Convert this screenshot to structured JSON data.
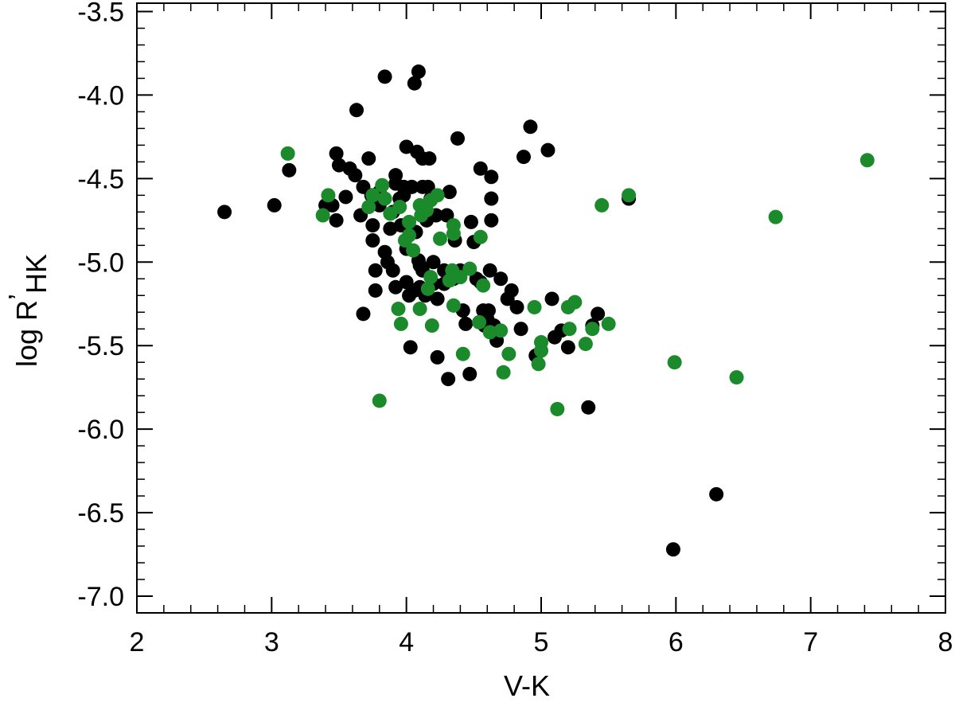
{
  "chart_data": {
    "type": "scatter",
    "title": "",
    "xlabel": "V-K",
    "ylabel_main": "log R",
    "ylabel_prime": "’",
    "ylabel_sub": "HK",
    "xlim": [
      2,
      8
    ],
    "ylim": [
      -7.1,
      -3.45
    ],
    "x_ticks": [
      2,
      3,
      4,
      5,
      6,
      7,
      8
    ],
    "x_tick_labels": [
      "2",
      "3",
      "4",
      "5",
      "6",
      "7",
      "8"
    ],
    "y_ticks": [
      -3.5,
      -4.0,
      -4.5,
      -5.0,
      -5.5,
      -6.0,
      -6.5,
      -7.0
    ],
    "y_tick_labels": [
      "-3.5",
      "-4.0",
      "-4.5",
      "-5.0",
      "-5.5",
      "-6.0",
      "-6.5",
      "-7.0"
    ],
    "grid": false,
    "series": [
      {
        "color": "#000000",
        "points": [
          [
            2.65,
            -4.7
          ],
          [
            3.02,
            -4.66
          ],
          [
            3.13,
            -4.45
          ],
          [
            3.4,
            -4.66
          ],
          [
            3.45,
            -4.66
          ],
          [
            3.48,
            -4.75
          ],
          [
            3.48,
            -4.35
          ],
          [
            3.5,
            -4.42
          ],
          [
            3.55,
            -4.61
          ],
          [
            3.58,
            -4.44
          ],
          [
            3.62,
            -4.48
          ],
          [
            3.63,
            -4.09
          ],
          [
            3.66,
            -4.72
          ],
          [
            3.68,
            -4.55
          ],
          [
            3.72,
            -4.38
          ],
          [
            3.68,
            -5.31
          ],
          [
            3.74,
            -4.6
          ],
          [
            3.75,
            -4.78
          ],
          [
            3.75,
            -4.87
          ],
          [
            3.77,
            -5.05
          ],
          [
            3.77,
            -5.17
          ],
          [
            3.8,
            -4.58
          ],
          [
            3.8,
            -4.66
          ],
          [
            3.84,
            -3.89
          ],
          [
            3.84,
            -4.94
          ],
          [
            3.86,
            -5.0
          ],
          [
            3.88,
            -4.8
          ],
          [
            3.9,
            -4.7
          ],
          [
            3.9,
            -5.05
          ],
          [
            3.92,
            -4.48
          ],
          [
            3.92,
            -4.53
          ],
          [
            3.92,
            -5.15
          ],
          [
            3.95,
            -4.62
          ],
          [
            3.96,
            -4.78
          ],
          [
            3.98,
            -4.55
          ],
          [
            3.98,
            -4.6
          ],
          [
            4.0,
            -4.31
          ],
          [
            4.0,
            -4.92
          ],
          [
            4.0,
            -5.12
          ],
          [
            4.02,
            -5.2
          ],
          [
            4.03,
            -5.51
          ],
          [
            4.04,
            -4.55
          ],
          [
            4.06,
            -3.93
          ],
          [
            4.06,
            -5.17
          ],
          [
            4.07,
            -4.82
          ],
          [
            4.08,
            -4.34
          ],
          [
            4.09,
            -3.86
          ],
          [
            4.09,
            -4.99
          ],
          [
            4.1,
            -5.02
          ],
          [
            4.1,
            -5.15
          ],
          [
            4.12,
            -4.55
          ],
          [
            4.12,
            -4.38
          ],
          [
            4.12,
            -5.05
          ],
          [
            4.14,
            -5.2
          ],
          [
            4.15,
            -4.75
          ],
          [
            4.16,
            -4.55
          ],
          [
            4.17,
            -4.38
          ],
          [
            4.18,
            -4.62
          ],
          [
            4.2,
            -5.0
          ],
          [
            4.2,
            -5.13
          ],
          [
            4.22,
            -4.72
          ],
          [
            4.23,
            -5.22
          ],
          [
            4.23,
            -5.57
          ],
          [
            4.28,
            -5.05
          ],
          [
            4.28,
            -5.13
          ],
          [
            4.3,
            -4.72
          ],
          [
            4.31,
            -5.7
          ],
          [
            4.32,
            -4.58
          ],
          [
            4.35,
            -5.1
          ],
          [
            4.36,
            -4.87
          ],
          [
            4.38,
            -4.26
          ],
          [
            4.4,
            -5.05
          ],
          [
            4.42,
            -5.29
          ],
          [
            4.44,
            -5.37
          ],
          [
            4.47,
            -5.67
          ],
          [
            4.48,
            -4.76
          ],
          [
            4.5,
            -4.88
          ],
          [
            4.52,
            -5.1
          ],
          [
            4.55,
            -4.44
          ],
          [
            4.55,
            -5.12
          ],
          [
            4.57,
            -5.29
          ],
          [
            4.58,
            -5.38
          ],
          [
            4.6,
            -5.34
          ],
          [
            4.61,
            -5.29
          ],
          [
            4.62,
            -5.05
          ],
          [
            4.63,
            -4.75
          ],
          [
            4.63,
            -4.62
          ],
          [
            4.63,
            -4.49
          ],
          [
            4.65,
            -5.38
          ],
          [
            4.67,
            -5.47
          ],
          [
            4.7,
            -5.1
          ],
          [
            4.75,
            -5.22
          ],
          [
            4.78,
            -5.17
          ],
          [
            4.82,
            -5.27
          ],
          [
            4.85,
            -5.4
          ],
          [
            4.87,
            -4.37
          ],
          [
            4.92,
            -4.19
          ],
          [
            4.96,
            -5.56
          ],
          [
            5.05,
            -4.33
          ],
          [
            5.08,
            -5.22
          ],
          [
            5.1,
            -5.45
          ],
          [
            5.15,
            -5.41
          ],
          [
            5.2,
            -5.51
          ],
          [
            5.35,
            -5.87
          ],
          [
            5.38,
            -5.38
          ],
          [
            5.42,
            -5.31
          ],
          [
            5.65,
            -4.62
          ],
          [
            5.98,
            -6.72
          ],
          [
            6.3,
            -6.39
          ]
        ]
      },
      {
        "color": "#1a8a2a",
        "points": [
          [
            3.12,
            -4.35
          ],
          [
            3.38,
            -4.72
          ],
          [
            3.42,
            -4.6
          ],
          [
            3.72,
            -4.67
          ],
          [
            3.75,
            -4.6
          ],
          [
            3.8,
            -5.83
          ],
          [
            3.82,
            -4.54
          ],
          [
            3.84,
            -4.62
          ],
          [
            3.88,
            -4.71
          ],
          [
            3.94,
            -5.28
          ],
          [
            3.95,
            -4.67
          ],
          [
            3.96,
            -5.37
          ],
          [
            3.99,
            -4.87
          ],
          [
            4.02,
            -4.76
          ],
          [
            4.02,
            -4.84
          ],
          [
            4.05,
            -4.93
          ],
          [
            4.1,
            -5.28
          ],
          [
            4.1,
            -4.66
          ],
          [
            4.11,
            -4.72
          ],
          [
            4.15,
            -4.69
          ],
          [
            4.16,
            -5.16
          ],
          [
            4.18,
            -5.09
          ],
          [
            4.18,
            -4.63
          ],
          [
            4.19,
            -5.38
          ],
          [
            4.23,
            -4.6
          ],
          [
            4.25,
            -4.86
          ],
          [
            4.32,
            -5.11
          ],
          [
            4.34,
            -5.05
          ],
          [
            4.35,
            -4.78
          ],
          [
            4.35,
            -4.83
          ],
          [
            4.35,
            -5.26
          ],
          [
            4.4,
            -5.09
          ],
          [
            4.42,
            -5.55
          ],
          [
            4.47,
            -5.04
          ],
          [
            4.54,
            -5.36
          ],
          [
            4.55,
            -4.85
          ],
          [
            4.57,
            -5.14
          ],
          [
            4.62,
            -5.42
          ],
          [
            4.7,
            -5.41
          ],
          [
            4.72,
            -5.66
          ],
          [
            4.76,
            -5.55
          ],
          [
            4.95,
            -5.27
          ],
          [
            4.98,
            -5.61
          ],
          [
            5.0,
            -5.48
          ],
          [
            5.0,
            -5.53
          ],
          [
            5.12,
            -5.88
          ],
          [
            5.2,
            -5.27
          ],
          [
            5.21,
            -5.4
          ],
          [
            5.25,
            -5.24
          ],
          [
            5.33,
            -5.49
          ],
          [
            5.38,
            -5.4
          ],
          [
            5.45,
            -4.66
          ],
          [
            5.5,
            -5.37
          ],
          [
            5.65,
            -4.6
          ],
          [
            5.99,
            -5.6
          ],
          [
            6.45,
            -5.69
          ],
          [
            6.74,
            -4.73
          ],
          [
            7.42,
            -4.39
          ]
        ]
      }
    ]
  }
}
